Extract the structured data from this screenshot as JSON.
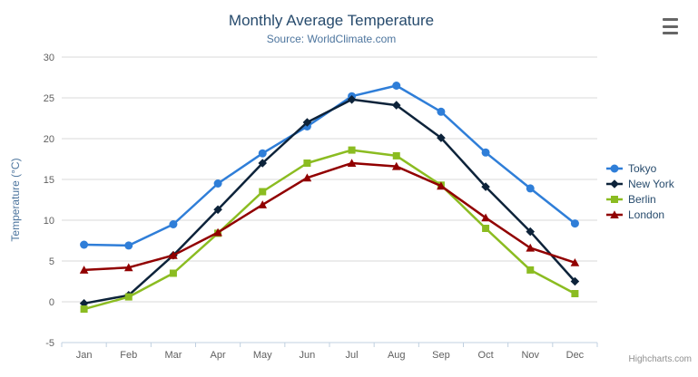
{
  "credits": "Highcharts.com",
  "chart_data": {
    "type": "line",
    "title": "Monthly Average Temperature",
    "subtitle": "Source: WorldClimate.com",
    "categories": [
      "Jan",
      "Feb",
      "Mar",
      "Apr",
      "May",
      "Jun",
      "Jul",
      "Aug",
      "Sep",
      "Oct",
      "Nov",
      "Dec"
    ],
    "xlabel": "",
    "ylabel": "Temperature (°C)",
    "ylim": [
      -5,
      30
    ],
    "ytick_interval": 5,
    "ytick_labels": [
      "-5",
      "0",
      "5",
      "10",
      "15",
      "20",
      "25",
      "30"
    ],
    "grid": true,
    "legend_position": "right",
    "colors": {
      "grid_line": "#d8d8d8",
      "axis_line": "#c0d0e0",
      "axis_label": "#606060",
      "axis_title": "#4d759e",
      "title": "#274b6d",
      "subtitle": "#4d759e",
      "legend_text": "#274b6d",
      "credits_text": "#909090",
      "menu_icon": "#666666"
    },
    "series": [
      {
        "name": "Tokyo",
        "color": "#2f7ed8",
        "marker": "circle",
        "values": [
          7.0,
          6.9,
          9.5,
          14.5,
          18.2,
          21.5,
          25.2,
          26.5,
          23.3,
          18.3,
          13.9,
          9.6
        ]
      },
      {
        "name": "New York",
        "color": "#0d233a",
        "marker": "diamond",
        "values": [
          -0.2,
          0.8,
          5.7,
          11.3,
          17.0,
          22.0,
          24.8,
          24.1,
          20.1,
          14.1,
          8.6,
          2.5
        ]
      },
      {
        "name": "Berlin",
        "color": "#8bbc21",
        "marker": "square",
        "values": [
          -0.9,
          0.6,
          3.5,
          8.4,
          13.5,
          17.0,
          18.6,
          17.9,
          14.3,
          9.0,
          3.9,
          1.0
        ]
      },
      {
        "name": "London",
        "color": "#910000",
        "marker": "triangle",
        "values": [
          3.9,
          4.2,
          5.7,
          8.5,
          11.9,
          15.2,
          17.0,
          16.6,
          14.2,
          10.3,
          6.6,
          4.8
        ]
      }
    ]
  }
}
